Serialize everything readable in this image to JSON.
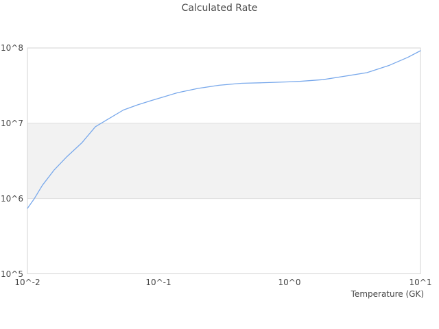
{
  "chart_data": {
    "type": "line",
    "title": "Calculated Rate",
    "xlabel": "Temperature (GK)",
    "ylabel": "",
    "x_scale": "log",
    "y_scale": "log",
    "xlim": [
      0.01,
      10
    ],
    "ylim": [
      100000,
      100000000
    ],
    "x_ticks": [
      {
        "value": 0.01,
        "label": "10^-2"
      },
      {
        "value": 0.1,
        "label": "10^-1"
      },
      {
        "value": 1,
        "label": "10^0"
      },
      {
        "value": 10,
        "label": "10^1"
      }
    ],
    "y_ticks": [
      {
        "value": 100000,
        "label": "10^5"
      },
      {
        "value": 1000000,
        "label": "10^6"
      },
      {
        "value": 10000000,
        "label": "10^7"
      },
      {
        "value": 100000000,
        "label": "10^8"
      }
    ],
    "grid": "horizontal-only",
    "legend": "none",
    "band": {
      "y_from": 1000000,
      "y_to": 10000000,
      "color": "#f2f2f2"
    },
    "colors": {
      "line": "#78a8eb",
      "grid": "#dcdcdc",
      "border": "#d3d3d3",
      "text": "#454545",
      "background": "#ffffff"
    },
    "series": [
      {
        "name": "Calculated Rate",
        "x": [
          0.01,
          0.0113,
          0.013,
          0.016,
          0.02,
          0.026,
          0.033,
          0.04,
          0.054,
          0.069,
          0.088,
          0.11,
          0.14,
          0.2,
          0.29,
          0.43,
          0.6,
          0.77,
          1.0,
          1.2,
          1.8,
          2.6,
          3.9,
          5.8,
          8.0,
          10.0
        ],
        "y": [
          740000,
          1000000,
          1500000,
          2400000,
          3600000,
          5500000,
          9000000,
          11000000,
          15000000,
          17500000,
          20000000,
          22500000,
          25500000,
          29000000,
          32000000,
          34000000,
          34500000,
          35000000,
          35500000,
          36000000,
          38000000,
          42000000,
          47000000,
          59000000,
          75000000,
          92000000
        ]
      }
    ]
  }
}
